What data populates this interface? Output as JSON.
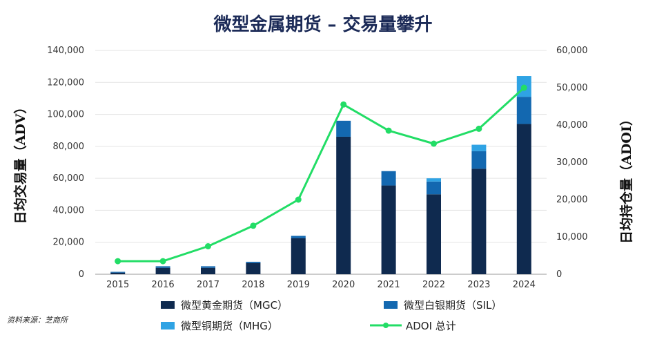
{
  "chart_data": {
    "type": "bar",
    "title": "微型金属期货 – 交易量攀升",
    "categories": [
      "2015",
      "2016",
      "2017",
      "2018",
      "2019",
      "2020",
      "2021",
      "2022",
      "2023",
      "2024"
    ],
    "series": [
      {
        "name": "微型黄金期货（MGC）",
        "color": "#0f2a4f",
        "values": [
          1000,
          4000,
          4000,
          7000,
          22500,
          86000,
          55500,
          50000,
          66000,
          94000
        ]
      },
      {
        "name": "微型白银期货（SIL）",
        "color": "#1368b0",
        "values": [
          500,
          1000,
          1000,
          800,
          1500,
          10000,
          9000,
          8000,
          11000,
          17000
        ]
      },
      {
        "name": "微型铜期货（MHG）",
        "color": "#2fa3e4",
        "values": [
          0,
          0,
          0,
          0,
          0,
          0,
          0,
          2000,
          4000,
          13000
        ]
      }
    ],
    "line_series": {
      "name": "ADOI 总计",
      "color": "#22dd66",
      "values": [
        3500,
        3500,
        7500,
        13000,
        20000,
        45500,
        38500,
        35000,
        39000,
        50000
      ]
    },
    "ylabel": "日均交易量（ADV）",
    "y2label": "日均持仓量（ADOI）",
    "ylim": [
      0,
      140000
    ],
    "y2lim": [
      0,
      60000
    ],
    "yticks": [
      "0",
      "20,000",
      "40,000",
      "60,000",
      "80,000",
      "100,000",
      "120,000",
      "140,000"
    ],
    "y2ticks": [
      "0",
      "10,000",
      "20,000",
      "30,000",
      "40,000",
      "50,000",
      "60,000"
    ],
    "legend_position": "bottom",
    "grid": true
  },
  "source": "资料来源：芝商所"
}
